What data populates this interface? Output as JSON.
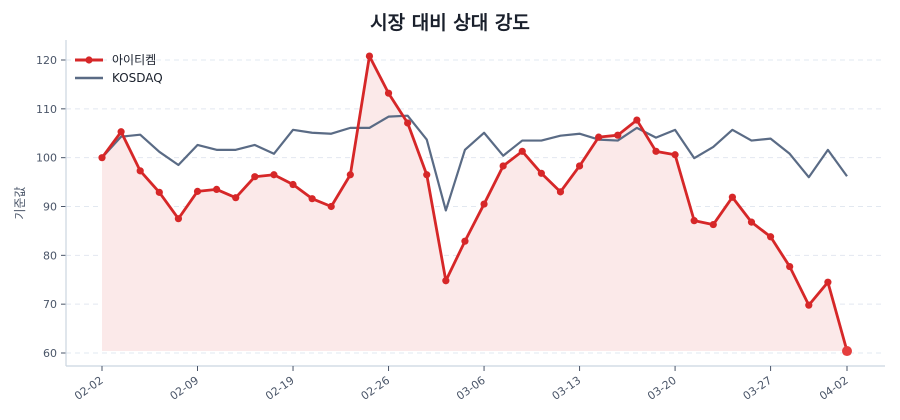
{
  "title": "시장 대비 상대 강도",
  "colors": {
    "stock": "#d62728",
    "stock_fill": "#fbe9e9",
    "last_marker": "#e53e3e",
    "index": "#5a6b85",
    "grid": "#e2e8f0",
    "axis": "#cbd5e0",
    "text": "#4a5568"
  },
  "legend": [
    {
      "label": "아이티켐",
      "color": "#d62728",
      "marker": true
    },
    {
      "label": "KOSDAQ",
      "color": "#5a6b85",
      "marker": false
    }
  ],
  "chart_data": {
    "type": "line",
    "title": "시장 대비 상대 강도",
    "xlabel": "",
    "ylabel": "기준값",
    "ylim": [
      58,
      124
    ],
    "yticks": [
      60,
      70,
      80,
      90,
      100,
      110,
      120
    ],
    "grid": true,
    "legend_position": "upper left",
    "x_ticks": [
      {
        "index": 0,
        "label": "02-02"
      },
      {
        "index": 5,
        "label": "02-09"
      },
      {
        "index": 10,
        "label": "02-19"
      },
      {
        "index": 15,
        "label": "02-26"
      },
      {
        "index": 20,
        "label": "03-06"
      },
      {
        "index": 25,
        "label": "03-13"
      },
      {
        "index": 30,
        "label": "03-20"
      },
      {
        "index": 35,
        "label": "03-27"
      },
      {
        "index": 39,
        "label": "04-02"
      }
    ],
    "series": [
      {
        "name": "아이티켐",
        "values": [
          100.0,
          105.3,
          97.3,
          92.9,
          87.5,
          93.1,
          93.5,
          91.8,
          96.1,
          96.5,
          94.5,
          91.6,
          90.0,
          96.5,
          120.8,
          113.2,
          107.1,
          96.5,
          74.8,
          82.9,
          90.5,
          98.3,
          101.3,
          96.8,
          93.0,
          98.3,
          104.2,
          104.6,
          107.7,
          101.3,
          100.6,
          87.1,
          86.3,
          91.9,
          86.8,
          83.8,
          77.7,
          69.8,
          74.5,
          60.4
        ]
      },
      {
        "name": "KOSDAQ",
        "values": [
          100.0,
          104.3,
          104.7,
          101.2,
          98.5,
          102.6,
          101.6,
          101.6,
          102.6,
          100.8,
          105.7,
          105.1,
          104.9,
          106.1,
          106.1,
          108.4,
          108.6,
          103.7,
          89.2,
          101.6,
          105.1,
          100.4,
          103.5,
          103.5,
          104.5,
          104.9,
          103.7,
          103.5,
          106.1,
          104.1,
          105.7,
          99.9,
          102.2,
          105.7,
          103.5,
          103.9,
          100.8,
          96.0,
          101.6,
          96.2
        ]
      }
    ]
  }
}
